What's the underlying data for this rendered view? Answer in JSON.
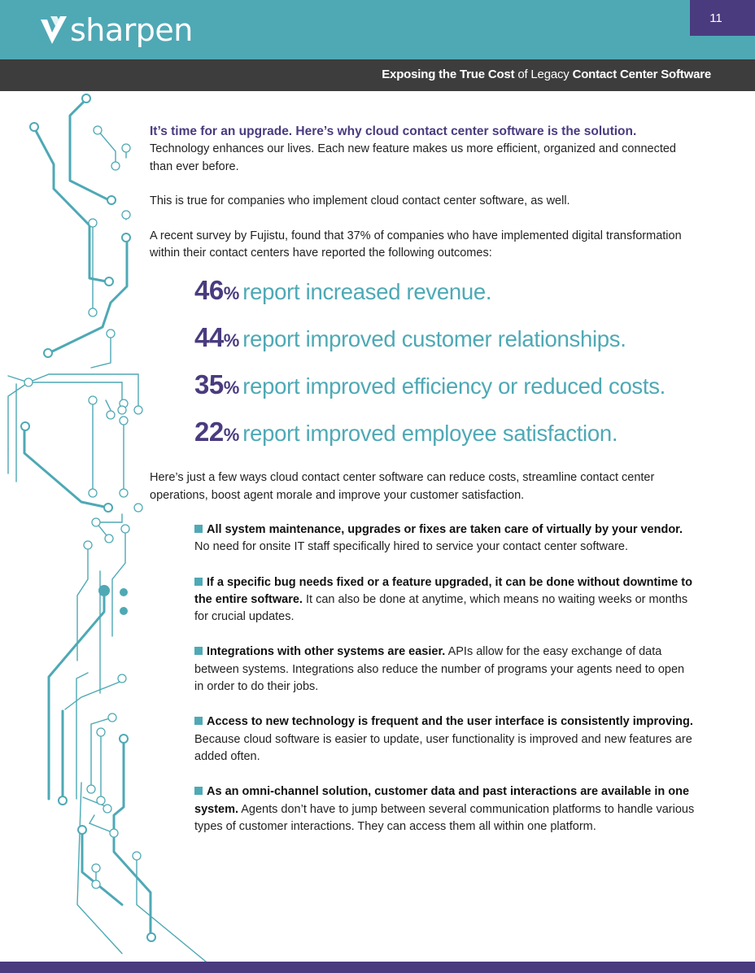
{
  "brand": {
    "name": "sharpen",
    "logo_color": "#ffffff"
  },
  "page_number": "11",
  "header_title": {
    "part1": "Exposing the True Cost",
    "part2": " of Legacy ",
    "part3": "Contact Center Software"
  },
  "colors": {
    "teal": "#4ea9b5",
    "purple": "#4a3b7f",
    "dark_bar": "#3d3d3d"
  },
  "intro": {
    "heading": "It’s time for an upgrade. Here’s why cloud contact center software is the solution.",
    "p1": "Technology enhances our lives. Each new feature makes us more efficient, organized and connected than ever before.",
    "p2": "This is true for companies who implement cloud contact center software, as well.",
    "p3": "A recent survey by Fujistu, found that 37% of companies who have implemented digital transformation within their contact centers have reported the following outcomes:"
  },
  "stats": [
    {
      "value": "46",
      "unit": "%",
      "text": "report increased revenue."
    },
    {
      "value": "44",
      "unit": "%",
      "text": "report improved customer relationships."
    },
    {
      "value": "35",
      "unit": "%",
      "text": "report improved efficiency or reduced costs."
    },
    {
      "value": "22",
      "unit": "%",
      "text": "report improved employee satisfaction."
    }
  ],
  "ways_intro": "Here’s just a few ways cloud contact center software can reduce costs, streamline contact center operations, boost agent morale and improve your customer satisfaction.",
  "bullets": [
    {
      "bold": "All system maintenance, upgrades or fixes are taken care of virtually by your vendor.",
      "text": " No need for onsite IT staff specifically hired to service your contact center software."
    },
    {
      "bold": "If a specific bug needs fixed or a feature upgraded, it can be done without downtime to the entire software.",
      "text": " It can also be done at anytime, which means no waiting weeks or months for crucial updates."
    },
    {
      "bold": "Integrations with other systems are easier.",
      "text": " APIs allow for the easy exchange of data between systems. Integrations also reduce the number of programs your agents need to open in order to do their jobs."
    },
    {
      "bold": "Access to new technology is frequent and the user interface is consistently improving.",
      "text": " Because cloud software is easier to update, user functionality is improved and new features are added often."
    },
    {
      "bold": "As an omni-channel solution, customer data and past interactions are available in one system.",
      "text": " Agents don’t have to jump between several communication platforms to handle various types of customer interactions. They can access them all within one platform."
    }
  ]
}
